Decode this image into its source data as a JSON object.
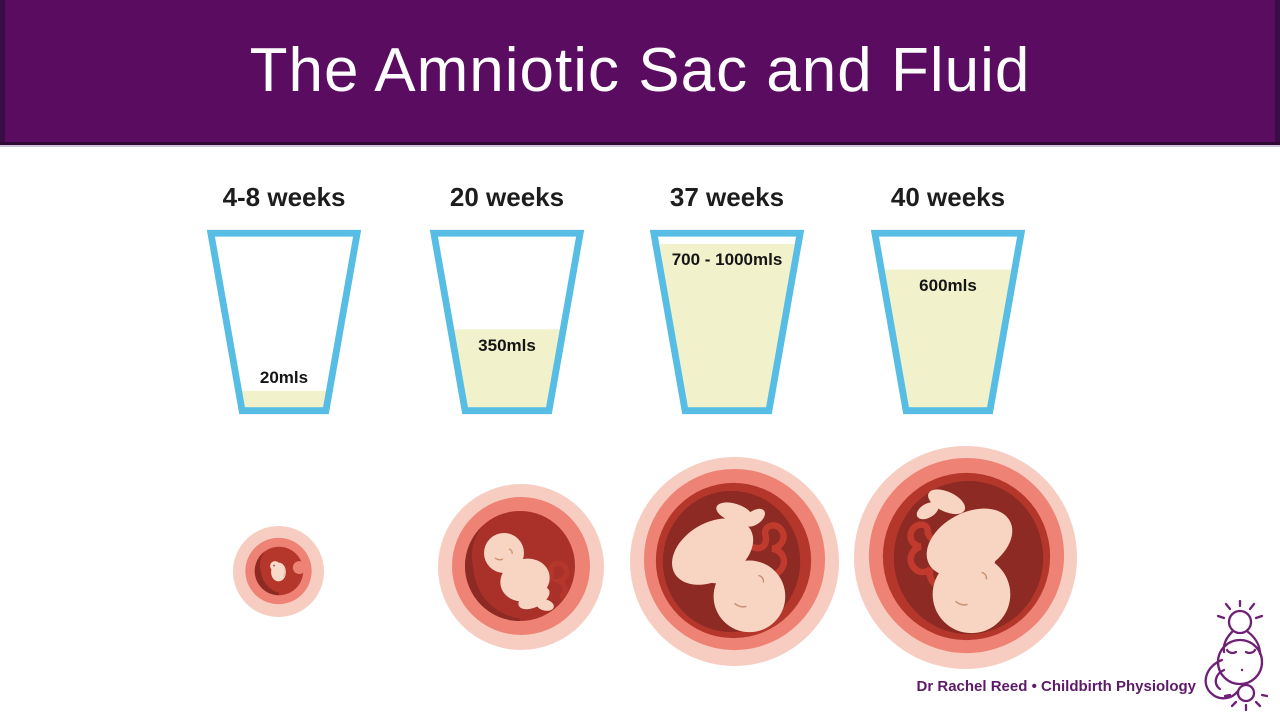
{
  "slide": {
    "title": "The Amniotic Sac and Fluid"
  },
  "chart_data": {
    "type": "bar",
    "title": "The Amniotic Sac and Fluid",
    "representation": "measuring cups of amniotic fluid by gestational age",
    "categories": [
      "4-8 weeks",
      "20 weeks",
      "37 weeks",
      "40 weeks"
    ],
    "values": [
      20,
      350,
      850,
      600
    ],
    "value_labels": [
      "20mls",
      "350mls",
      "700 - 1000mls",
      "600mls"
    ],
    "unit": "mls",
    "stages": [
      {
        "week_label": "4-8 weeks",
        "volume_label": "20mls",
        "volume_ml": 20,
        "fill_fraction": 0.1
      },
      {
        "week_label": "20 weeks",
        "volume_label": "350mls",
        "volume_ml": 350,
        "fill_fraction": 0.46
      },
      {
        "week_label": "37 weeks",
        "volume_label": "700 - 1000mls",
        "volume_ml_min": 700,
        "volume_ml_max": 1000,
        "fill_fraction": 0.96
      },
      {
        "week_label": "40 weeks",
        "volume_label": "600mls",
        "volume_ml": 600,
        "fill_fraction": 0.81
      }
    ]
  },
  "illustrations": [
    {
      "stage": "4-8 weeks",
      "icon": "embryo-in-amniotic-sac-icon"
    },
    {
      "stage": "20 weeks",
      "icon": "curled-fetus-in-amniotic-sac-icon"
    },
    {
      "stage": "37 weeks",
      "icon": "head-down-fetus-in-amniotic-sac-icon"
    },
    {
      "stage": "40 weeks",
      "icon": "head-down-fetus-in-amniotic-sac-icon"
    }
  ],
  "footer": {
    "attribution": "Dr Rachel Reed • Childbirth Physiology",
    "logo": "pregnant-figure-line-art-logo"
  },
  "colors": {
    "header_purple": "#5a0c61",
    "header_edge_dark": "#2d0933",
    "cup_outline_blue": "#57bde5",
    "fluid_yellow": "#f1f2cb",
    "attribution_purple": "#5d1a68",
    "logo_purple": "#6e2076",
    "sac_outer_pink": "#f7cdc1",
    "sac_mid_coral": "#ee8274",
    "sac_ring_red": "#b5372c",
    "sac_inner_maroon": "#8c2a23",
    "fetus_skin": "#f8d5c2"
  }
}
